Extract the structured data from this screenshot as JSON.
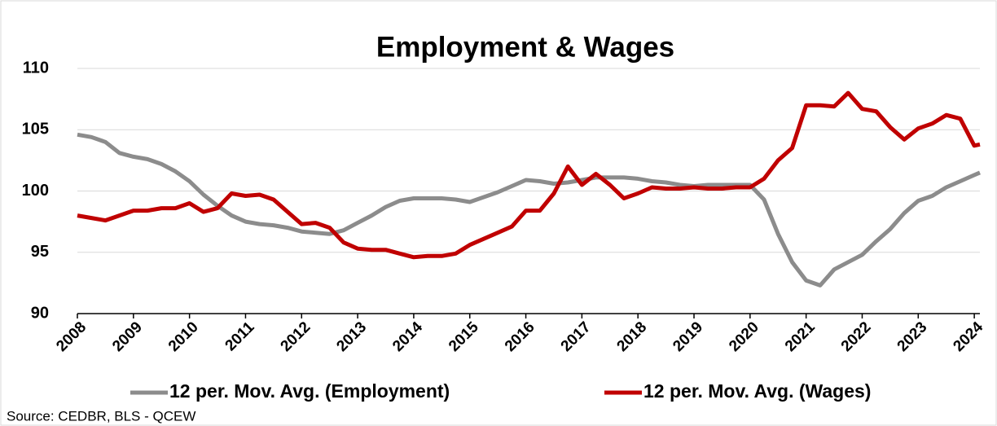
{
  "chart_data": {
    "type": "line",
    "title": "Employment & Wages",
    "source": "Source: CEDBR, BLS - QCEW",
    "x": [
      2008,
      2008.25,
      2008.5,
      2008.75,
      2009,
      2009.25,
      2009.5,
      2009.75,
      2010,
      2010.25,
      2010.5,
      2010.75,
      2011,
      2011.25,
      2011.5,
      2011.75,
      2012,
      2012.25,
      2012.5,
      2012.75,
      2013,
      2013.25,
      2013.5,
      2013.75,
      2014,
      2014.25,
      2014.5,
      2014.75,
      2015,
      2015.25,
      2015.5,
      2015.75,
      2016,
      2016.25,
      2016.5,
      2016.75,
      2017,
      2017.25,
      2017.5,
      2017.75,
      2018,
      2018.25,
      2018.5,
      2018.75,
      2019,
      2019.25,
      2019.5,
      2019.75,
      2020,
      2020.25,
      2020.5,
      2020.75,
      2021,
      2021.25,
      2021.5,
      2021.75,
      2022,
      2022.25,
      2022.5,
      2022.75,
      2023,
      2023.25,
      2023.5,
      2023.75,
      2024,
      2024.1
    ],
    "series": [
      {
        "name": "12 per. Mov. Avg. (Employment)",
        "color": "#8c8c8c",
        "values": [
          104.6,
          104.4,
          104.0,
          103.1,
          102.8,
          102.6,
          102.2,
          101.6,
          100.8,
          99.7,
          98.8,
          98.0,
          97.5,
          97.3,
          97.2,
          97.0,
          96.7,
          96.6,
          96.5,
          96.8,
          97.4,
          98.0,
          98.7,
          99.2,
          99.4,
          99.4,
          99.4,
          99.3,
          99.1,
          99.5,
          99.9,
          100.4,
          100.9,
          100.8,
          100.6,
          100.7,
          100.9,
          101.1,
          101.1,
          101.1,
          101.0,
          100.8,
          100.7,
          100.5,
          100.4,
          100.5,
          100.5,
          100.5,
          100.5,
          99.3,
          96.5,
          94.2,
          92.7,
          92.3,
          93.6,
          94.2,
          94.8,
          95.9,
          96.9,
          98.2,
          99.2,
          99.6,
          100.3,
          100.8,
          101.3,
          101.5
        ]
      },
      {
        "name": "12 per. Mov. Avg. (Wages)",
        "color": "#c00000",
        "values": [
          98.0,
          97.8,
          97.6,
          98.0,
          98.4,
          98.4,
          98.6,
          98.6,
          99.0,
          98.3,
          98.6,
          99.8,
          99.6,
          99.7,
          99.3,
          98.3,
          97.3,
          97.4,
          97.0,
          95.8,
          95.3,
          95.2,
          95.2,
          94.9,
          94.6,
          94.7,
          94.7,
          94.9,
          95.6,
          96.1,
          96.6,
          97.1,
          98.4,
          98.4,
          99.8,
          102.0,
          100.5,
          101.4,
          100.5,
          99.4,
          99.8,
          100.3,
          100.2,
          100.2,
          100.3,
          100.2,
          100.2,
          100.3,
          100.3,
          101.0,
          102.5,
          103.5,
          107.0,
          107.0,
          106.9,
          108.0,
          106.7,
          106.5,
          105.2,
          104.2,
          105.1,
          105.5,
          106.2,
          105.9,
          103.7,
          103.8
        ]
      }
    ],
    "xlim": [
      2008,
      2024.1
    ],
    "xticks": [
      2008,
      2009,
      2010,
      2011,
      2012,
      2013,
      2014,
      2015,
      2016,
      2017,
      2018,
      2019,
      2020,
      2021,
      2022,
      2023,
      2024
    ],
    "ylim": [
      90,
      110
    ],
    "yticks": [
      90,
      95,
      100,
      105,
      110
    ],
    "grid": true,
    "legend": "bottom"
  }
}
